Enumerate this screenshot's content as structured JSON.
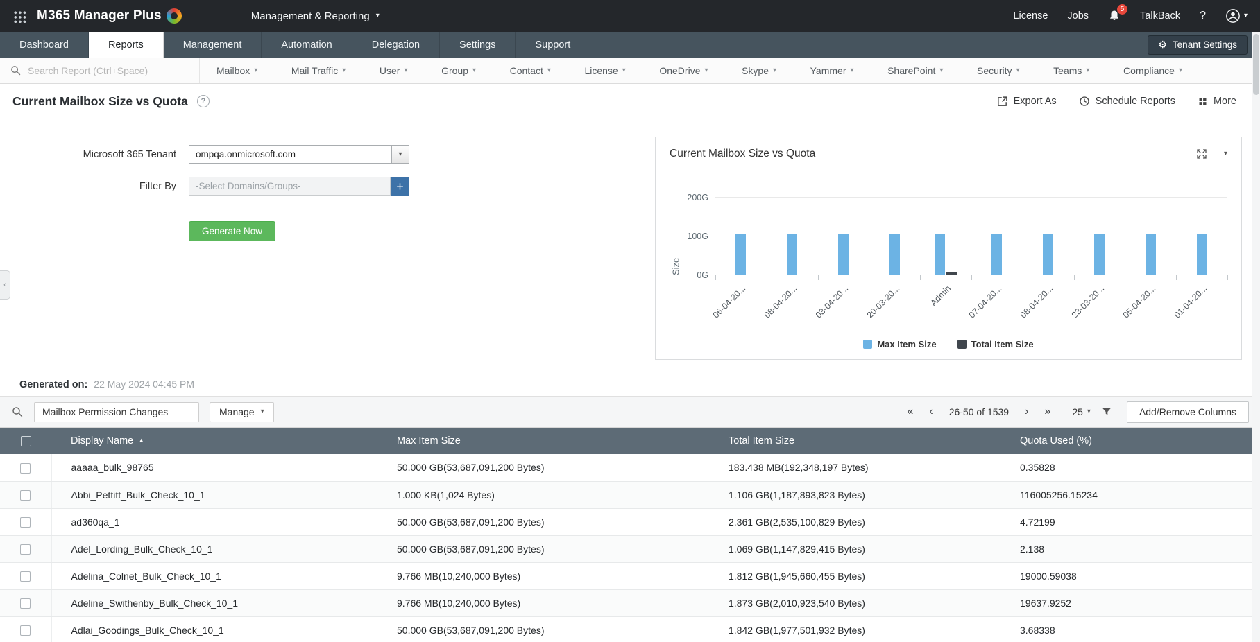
{
  "icons": {
    "caret_down": "▾",
    "gear": "⚙",
    "help": "?",
    "plus": "+",
    "sort_asc": "▲",
    "pager_first": "«",
    "pager_prev": "‹",
    "pager_next": "›",
    "pager_last": "»",
    "flyout": "‹"
  },
  "topbar": {
    "app_title": "M365 Manager Plus",
    "context_menu_label": "Management & Reporting",
    "license_label": "License",
    "jobs_label": "Jobs",
    "notification_count": "5",
    "talkback_label": "TalkBack"
  },
  "nav": {
    "tabs": [
      "Dashboard",
      "Reports",
      "Management",
      "Automation",
      "Delegation",
      "Settings",
      "Support"
    ],
    "active_tab": "Reports",
    "tenant_settings_label": "Tenant Settings"
  },
  "report_menu": {
    "search_placeholder": "Search Report (Ctrl+Space)",
    "categories": [
      "Mailbox",
      "Mail Traffic",
      "User",
      "Group",
      "Contact",
      "License",
      "OneDrive",
      "Skype",
      "Yammer",
      "SharePoint",
      "Security",
      "Teams",
      "Compliance"
    ]
  },
  "page": {
    "title": "Current Mailbox Size vs Quota",
    "export_label": "Export As",
    "schedule_label": "Schedule Reports",
    "more_label": "More"
  },
  "form": {
    "tenant_label": "Microsoft 365 Tenant",
    "tenant_value": "ompqa.onmicrosoft.com",
    "filter_label": "Filter By",
    "filter_placeholder": "-Select Domains/Groups-",
    "generate_label": "Generate Now"
  },
  "chart_data": {
    "type": "bar",
    "title": "Current Mailbox Size vs Quota",
    "ylabel": "Size",
    "ymax": 240,
    "grid": true,
    "legend_position": "bottom",
    "yticks": [
      {
        "label": "0G",
        "value": 0
      },
      {
        "label": "100G",
        "value": 100
      },
      {
        "label": "200G",
        "value": 200
      }
    ],
    "categories": [
      "06-04-20...",
      "08-04-20...",
      "03-04-20...",
      "20-03-20...",
      "Admin",
      "07-04-20...",
      "08-04-20...",
      "23-03-20...",
      "05-04-20...",
      "01-04-20..."
    ],
    "series": [
      {
        "name": "Max Item Size",
        "color": "#6cb3e4",
        "values": [
          105,
          105,
          105,
          105,
          105,
          105,
          105,
          105,
          105,
          105
        ]
      },
      {
        "name": "Total Item Size",
        "color": "#40464d",
        "values": [
          0,
          0,
          0,
          0,
          9,
          0,
          0,
          0,
          0,
          0
        ]
      }
    ]
  },
  "generated": {
    "label": "Generated on:",
    "value": "22 May 2024 04:45 PM"
  },
  "toolbar": {
    "report_name": "Mailbox Permission Changes",
    "manage_label": "Manage",
    "range_text": "26-50 of 1539",
    "page_size": "25",
    "columns_label": "Add/Remove Columns"
  },
  "table": {
    "columns": [
      "Display Name",
      "Max Item Size",
      "Total Item Size",
      "Quota Used (%)"
    ],
    "sort_column": "Display Name",
    "rows": [
      {
        "display_name": "aaaaa_bulk_98765",
        "max_item_size": "50.000 GB(53,687,091,200 Bytes)",
        "total_item_size": "183.438 MB(192,348,197 Bytes)",
        "quota_used": "0.35828"
      },
      {
        "display_name": "Abbi_Pettitt_Bulk_Check_10_1",
        "max_item_size": "1.000 KB(1,024 Bytes)",
        "total_item_size": "1.106 GB(1,187,893,823 Bytes)",
        "quota_used": "116005256.15234"
      },
      {
        "display_name": "ad360qa_1",
        "max_item_size": "50.000 GB(53,687,091,200 Bytes)",
        "total_item_size": "2.361 GB(2,535,100,829 Bytes)",
        "quota_used": "4.72199"
      },
      {
        "display_name": "Adel_Lording_Bulk_Check_10_1",
        "max_item_size": "50.000 GB(53,687,091,200 Bytes)",
        "total_item_size": "1.069 GB(1,147,829,415 Bytes)",
        "quota_used": "2.138"
      },
      {
        "display_name": "Adelina_Colnet_Bulk_Check_10_1",
        "max_item_size": "9.766 MB(10,240,000 Bytes)",
        "total_item_size": "1.812 GB(1,945,660,455 Bytes)",
        "quota_used": "19000.59038"
      },
      {
        "display_name": "Adeline_Swithenby_Bulk_Check_10_1",
        "max_item_size": "9.766 MB(10,240,000 Bytes)",
        "total_item_size": "1.873 GB(2,010,923,540 Bytes)",
        "quota_used": "19637.9252"
      },
      {
        "display_name": "Adlai_Goodings_Bulk_Check_10_1",
        "max_item_size": "50.000 GB(53,687,091,200 Bytes)",
        "total_item_size": "1.842 GB(1,977,501,932 Bytes)",
        "quota_used": "3.68338"
      }
    ]
  }
}
